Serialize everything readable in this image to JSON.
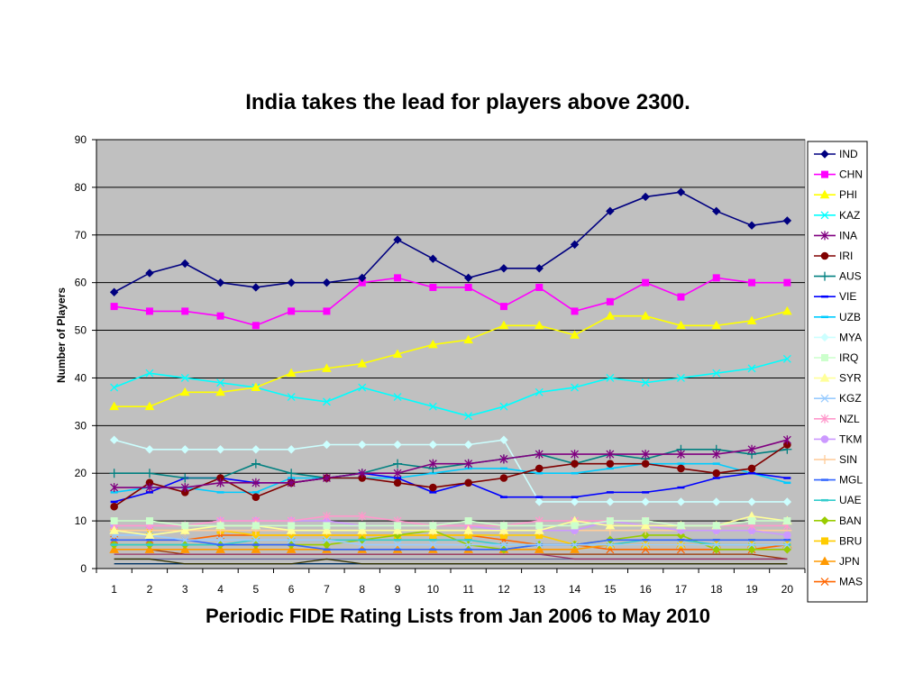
{
  "chart_data": {
    "type": "line",
    "title": "India takes the lead for players above 2300.",
    "xlabel": "Periodic FIDE Rating Lists from Jan 2006 to May 2010",
    "ylabel": "Number of Players",
    "categories": [
      "1",
      "2",
      "3",
      "4",
      "5",
      "6",
      "7",
      "8",
      "9",
      "10",
      "11",
      "12",
      "13",
      "14",
      "15",
      "16",
      "17",
      "18",
      "19",
      "20"
    ],
    "y_ticks": [
      "0",
      "10",
      "20",
      "30",
      "40",
      "50",
      "60",
      "70",
      "80",
      "90"
    ],
    "ylim": [
      0,
      90
    ],
    "grid": "horizontal",
    "plot_background": "#C0C0C0",
    "legend_position": "right",
    "series": [
      {
        "name": "IND",
        "color": "#000080",
        "marker": "diamond",
        "values": [
          58,
          62,
          64,
          60,
          59,
          60,
          60,
          61,
          69,
          65,
          61,
          63,
          63,
          68,
          75,
          78,
          79,
          75,
          72,
          73
        ]
      },
      {
        "name": "CHN",
        "color": "#FF00FF",
        "marker": "square",
        "values": [
          55,
          54,
          54,
          53,
          51,
          54,
          54,
          60,
          61,
          59,
          59,
          55,
          59,
          54,
          56,
          60,
          57,
          61,
          60,
          60
        ]
      },
      {
        "name": "PHI",
        "color": "#FFFF00",
        "marker": "triangle",
        "values": [
          34,
          34,
          37,
          37,
          38,
          41,
          42,
          43,
          45,
          47,
          48,
          51,
          51,
          49,
          53,
          53,
          51,
          51,
          52,
          54
        ]
      },
      {
        "name": "KAZ",
        "color": "#00FFFF",
        "marker": "x",
        "values": [
          38,
          41,
          40,
          39,
          38,
          36,
          35,
          38,
          36,
          34,
          32,
          34,
          37,
          38,
          40,
          39,
          40,
          41,
          42,
          44
        ]
      },
      {
        "name": "INA",
        "color": "#800080",
        "marker": "star",
        "values": [
          17,
          17,
          17,
          18,
          18,
          18,
          19,
          20,
          20,
          22,
          22,
          23,
          24,
          24,
          24,
          24,
          24,
          24,
          25,
          27
        ]
      },
      {
        "name": "IRI",
        "color": "#800000",
        "marker": "circle",
        "values": [
          13,
          18,
          16,
          19,
          15,
          18,
          19,
          19,
          18,
          17,
          18,
          19,
          21,
          22,
          22,
          22,
          21,
          20,
          21,
          26
        ]
      },
      {
        "name": "AUS",
        "color": "#008080",
        "marker": "plus",
        "values": [
          20,
          20,
          19,
          19,
          22,
          20,
          19,
          20,
          22,
          21,
          22,
          23,
          24,
          22,
          24,
          23,
          25,
          25,
          24,
          25
        ]
      },
      {
        "name": "VIE",
        "color": "#0000FF",
        "marker": "dash",
        "values": [
          14,
          16,
          19,
          19,
          18,
          18,
          19,
          20,
          19,
          16,
          18,
          15,
          15,
          15,
          16,
          16,
          17,
          19,
          20,
          19
        ]
      },
      {
        "name": "UZB",
        "color": "#00CCFF",
        "marker": "dash",
        "values": [
          16,
          17,
          17,
          16,
          16,
          19,
          19,
          19,
          19,
          20,
          21,
          21,
          20,
          20,
          21,
          22,
          22,
          22,
          20,
          18
        ]
      },
      {
        "name": "MYA",
        "color": "#CCFFFF",
        "marker": "diamond",
        "values": [
          27,
          25,
          25,
          25,
          25,
          25,
          26,
          26,
          26,
          26,
          26,
          27,
          14,
          14,
          14,
          14,
          14,
          14,
          14,
          14
        ]
      },
      {
        "name": "IRQ",
        "color": "#CCFFCC",
        "marker": "square",
        "values": [
          10,
          10,
          9,
          9,
          9,
          9,
          9,
          9,
          9,
          9,
          10,
          9,
          9,
          9,
          10,
          10,
          9,
          9,
          10,
          10
        ]
      },
      {
        "name": "SYR",
        "color": "#FFFF99",
        "marker": "triangle",
        "values": [
          8,
          7,
          8,
          9,
          9,
          8,
          8,
          8,
          8,
          8,
          8,
          8,
          8,
          10,
          9,
          9,
          9,
          9,
          11,
          10
        ]
      },
      {
        "name": "KGZ",
        "color": "#99CCFF",
        "marker": "x",
        "values": [
          7,
          7,
          6,
          6,
          6,
          6,
          6,
          5,
          5,
          5,
          5,
          5,
          5,
          5,
          5,
          5,
          5,
          5,
          5,
          5
        ]
      },
      {
        "name": "NZL",
        "color": "#FF99CC",
        "marker": "star",
        "values": [
          9,
          9,
          9,
          10,
          10,
          10,
          11,
          11,
          10,
          9,
          9,
          9,
          10,
          10,
          10,
          10,
          9,
          9,
          9,
          9
        ]
      },
      {
        "name": "TKM",
        "color": "#CC99FF",
        "marker": "circle",
        "values": [
          9,
          9,
          9,
          10,
          10,
          10,
          10,
          9,
          9,
          9,
          9,
          8,
          8,
          8,
          10,
          9,
          8,
          8,
          8,
          7
        ]
      },
      {
        "name": "SIN",
        "color": "#FFCC99",
        "marker": "plus",
        "values": [
          8,
          8,
          8,
          8,
          8,
          8,
          8,
          8,
          8,
          8,
          8,
          8,
          8,
          8,
          8,
          8,
          8,
          8,
          8,
          8
        ]
      },
      {
        "name": "MGL",
        "color": "#3366FF",
        "marker": "dash",
        "values": [
          6,
          6,
          6,
          5,
          5,
          5,
          4,
          4,
          4,
          4,
          4,
          4,
          5,
          5,
          6,
          6,
          6,
          6,
          6,
          6
        ]
      },
      {
        "name": "UAE",
        "color": "#33CCCC",
        "marker": "dash",
        "values": [
          5,
          5,
          5,
          5,
          6,
          6,
          6,
          6,
          6,
          6,
          6,
          5,
          5,
          5,
          5,
          6,
          6,
          5,
          5,
          5
        ]
      },
      {
        "name": "BAN",
        "color": "#99CC00",
        "marker": "diamond",
        "values": [
          5,
          5,
          5,
          5,
          5,
          5,
          5,
          6,
          7,
          8,
          5,
          4,
          5,
          5,
          6,
          7,
          7,
          4,
          4,
          4
        ]
      },
      {
        "name": "BRU",
        "color": "#FFCC00",
        "marker": "square",
        "values": [
          8,
          8,
          8,
          8,
          7,
          7,
          7,
          7,
          7,
          7,
          7,
          7,
          7,
          5,
          5,
          5,
          5,
          5,
          5,
          5
        ]
      },
      {
        "name": "JPN",
        "color": "#FF9900",
        "marker": "triangle",
        "values": [
          4,
          4,
          4,
          4,
          4,
          4,
          4,
          4,
          4,
          4,
          4,
          4,
          4,
          4,
          5,
          5,
          5,
          5,
          5,
          5
        ]
      },
      {
        "name": "MAS",
        "color": "#FF6600",
        "marker": "x",
        "values": [
          6,
          6,
          6,
          7,
          7,
          7,
          7,
          7,
          7,
          7,
          7,
          6,
          5,
          5,
          4,
          4,
          4,
          4,
          4,
          5
        ]
      }
    ],
    "background_series": [
      {
        "color": "#666699",
        "values": [
          2,
          2,
          2,
          2,
          2,
          2,
          2,
          2,
          2,
          2,
          2,
          2,
          2,
          2,
          2,
          2,
          2,
          2,
          2,
          2
        ]
      },
      {
        "color": "#003366",
        "values": [
          1,
          1,
          1,
          1,
          1,
          1,
          1,
          1,
          1,
          1,
          1,
          1,
          1,
          1,
          1,
          1,
          1,
          1,
          1,
          1
        ]
      },
      {
        "color": "#333300",
        "values": [
          2,
          2,
          1,
          1,
          1,
          1,
          2,
          1,
          1,
          1,
          1,
          1,
          1,
          1,
          1,
          1,
          1,
          1,
          1,
          1
        ]
      },
      {
        "color": "#993300",
        "values": [
          4,
          4,
          3,
          3,
          3,
          3,
          3,
          3,
          3,
          3,
          3,
          3,
          3,
          3,
          3,
          3,
          3,
          3,
          3,
          2
        ]
      },
      {
        "color": "#993366",
        "values": [
          3,
          3,
          3,
          3,
          3,
          3,
          3,
          3,
          3,
          3,
          3,
          3,
          3,
          2,
          2,
          2,
          2,
          2,
          2,
          2
        ]
      }
    ]
  }
}
